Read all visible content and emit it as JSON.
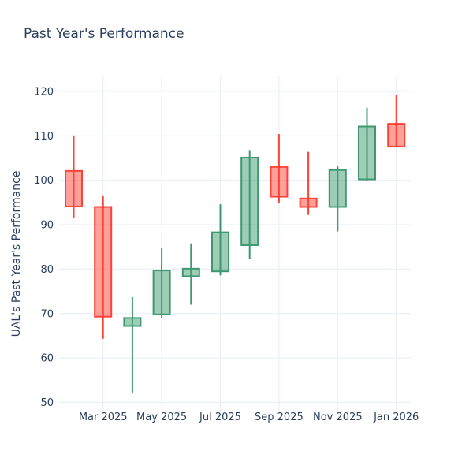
{
  "header": {
    "title": "Past Year's Performance"
  },
  "chart_data": {
    "type": "candlestick",
    "title": "Past Year's Performance",
    "xlabel": "",
    "ylabel": "UAL's Past Year's Performance",
    "ylim": [
      47.8,
      123.6
    ],
    "y_ticks": [
      50,
      60,
      70,
      80,
      90,
      100,
      110,
      120
    ],
    "x_ticks": [
      {
        "label": "Mar 2025",
        "index": 1
      },
      {
        "label": "May 2025",
        "index": 3
      },
      {
        "label": "Jul 2025",
        "index": 5
      },
      {
        "label": "Sep 2025",
        "index": 7
      },
      {
        "label": "Nov 2025",
        "index": 9
      },
      {
        "label": "Jan 2026",
        "index": 11
      }
    ],
    "grid": true,
    "legend": "none",
    "candles": [
      {
        "month": "Feb 2025",
        "open": 102.1,
        "high": 110.1,
        "low": 91.6,
        "close": 94.1,
        "direction": "decreasing"
      },
      {
        "month": "Mar 2025",
        "open": 94.0,
        "high": 96.6,
        "low": 64.3,
        "close": 69.3,
        "direction": "decreasing"
      },
      {
        "month": "Apr 2025",
        "open": 67.2,
        "high": 73.7,
        "low": 52.2,
        "close": 69.0,
        "direction": "increasing"
      },
      {
        "month": "May 2025",
        "open": 69.8,
        "high": 84.8,
        "low": 69.0,
        "close": 79.7,
        "direction": "increasing"
      },
      {
        "month": "Jun 2025",
        "open": 78.4,
        "high": 85.8,
        "low": 72.0,
        "close": 80.1,
        "direction": "increasing"
      },
      {
        "month": "Jul 2025",
        "open": 79.5,
        "high": 94.6,
        "low": 78.6,
        "close": 88.3,
        "direction": "increasing"
      },
      {
        "month": "Aug 2025",
        "open": 85.4,
        "high": 106.8,
        "low": 82.3,
        "close": 105.1,
        "direction": "increasing"
      },
      {
        "month": "Sep 2025",
        "open": 103.0,
        "high": 110.4,
        "low": 94.9,
        "close": 96.3,
        "direction": "decreasing"
      },
      {
        "month": "Oct 2025",
        "open": 95.9,
        "high": 106.4,
        "low": 92.2,
        "close": 94.0,
        "direction": "decreasing"
      },
      {
        "month": "Nov 2025",
        "open": 94.0,
        "high": 103.3,
        "low": 88.5,
        "close": 102.3,
        "direction": "increasing"
      },
      {
        "month": "Dec 2025",
        "open": 100.2,
        "high": 116.3,
        "low": 99.8,
        "close": 112.1,
        "direction": "increasing"
      },
      {
        "month": "Jan 2026",
        "open": 112.7,
        "high": 119.2,
        "low": 107.6,
        "close": 107.6,
        "direction": "decreasing"
      }
    ],
    "colors": {
      "increasing_line": "#3D9970",
      "increasing_fill": "rgba(61,153,112,0.5)",
      "decreasing_line": "#FF4136",
      "decreasing_fill": "rgba(255,65,54,0.5)",
      "grid_color": "#EBF0F8",
      "text_color": "#2a3f5f",
      "plot_background": "#ffffff"
    }
  }
}
